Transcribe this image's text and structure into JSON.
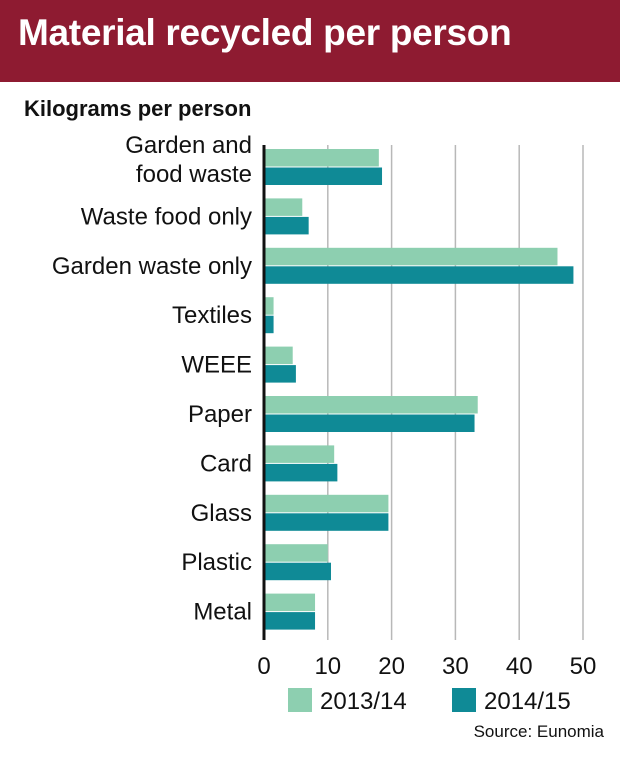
{
  "header": {
    "title": "Material recycled per person"
  },
  "source": "Source: Eunomia",
  "colors": {
    "header_bg": "#8e1b31",
    "series_2013": "#8dcfb0",
    "series_2014": "#0f8a96",
    "grid": "#b8b8b8",
    "axis": "#111111"
  },
  "chart_data": {
    "type": "bar",
    "orientation": "horizontal",
    "title": "",
    "subtitle": "Kilograms per person",
    "xlabel": "",
    "ylabel": "",
    "xlim": [
      0,
      50
    ],
    "xticks": [
      0,
      10,
      20,
      30,
      40,
      50
    ],
    "grid": "vertical",
    "legend_position": "bottom",
    "categories": [
      [
        "Garden and",
        "food waste"
      ],
      [
        "Waste food only"
      ],
      [
        "Garden waste only"
      ],
      [
        "Textiles"
      ],
      [
        "WEEE"
      ],
      [
        "Paper"
      ],
      [
        "Card"
      ],
      [
        "Glass"
      ],
      [
        "Plastic"
      ],
      [
        "Metal"
      ]
    ],
    "series": [
      {
        "name": "2013/14",
        "values": [
          18,
          6,
          46,
          1.5,
          4.5,
          33.5,
          11,
          19.5,
          10,
          8
        ]
      },
      {
        "name": "2014/15",
        "values": [
          18.5,
          7,
          48.5,
          1.5,
          5,
          33,
          11.5,
          19.5,
          10.5,
          8
        ]
      }
    ]
  }
}
